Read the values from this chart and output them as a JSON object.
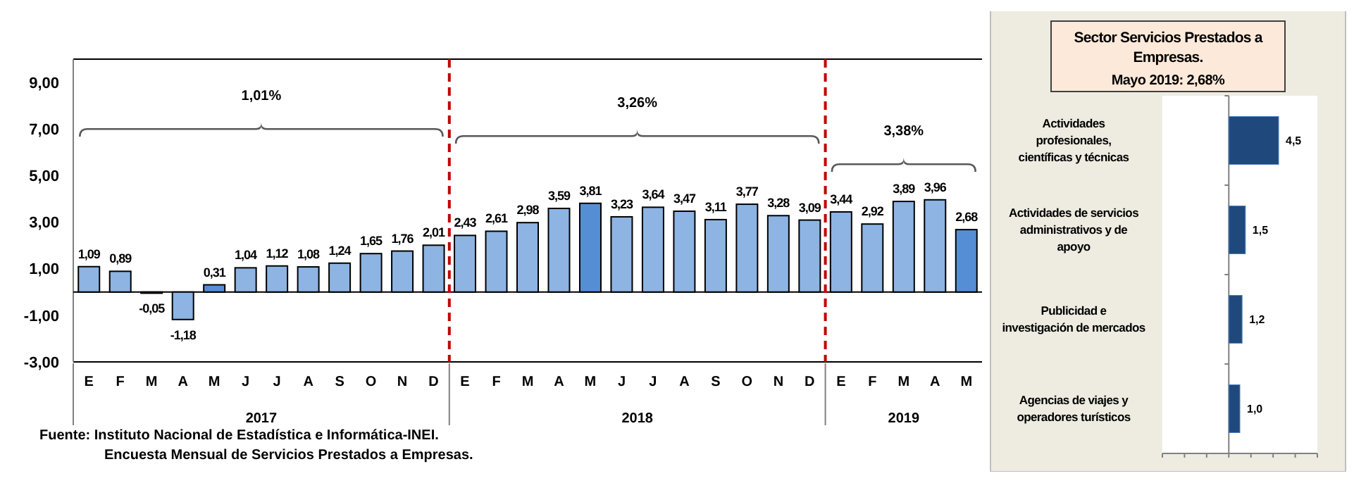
{
  "chart_data": [
    {
      "type": "bar",
      "categories": [
        "E",
        "F",
        "M",
        "A",
        "M",
        "J",
        "J",
        "A",
        "S",
        "O",
        "N",
        "D",
        "E",
        "F",
        "M",
        "A",
        "M",
        "J",
        "J",
        "A",
        "S",
        "O",
        "N",
        "D",
        "E",
        "F",
        "M",
        "A",
        "M"
      ],
      "values": [
        1.09,
        0.89,
        -0.05,
        -1.18,
        0.31,
        1.04,
        1.12,
        1.08,
        1.24,
        1.65,
        1.76,
        2.01,
        2.43,
        2.61,
        2.98,
        3.59,
        3.81,
        3.23,
        3.64,
        3.47,
        3.11,
        3.77,
        3.28,
        3.09,
        3.44,
        2.92,
        3.89,
        3.96,
        2.68
      ],
      "value_labels": [
        "1,09",
        "0,89",
        "-0,05",
        "-1,18",
        "0,31",
        "1,04",
        "1,12",
        "1,08",
        "1,24",
        "1,65",
        "1,76",
        "2,01",
        "2,43",
        "2,61",
        "2,98",
        "3,59",
        "3,81",
        "3,23",
        "3,64",
        "3,47",
        "3,11",
        "3,77",
        "3,28",
        "3,09",
        "3,44",
        "2,92",
        "3,89",
        "3,96",
        "2,68"
      ],
      "colors": [
        "#8db4e2",
        "#8db4e2",
        "#8db4e2",
        "#8db4e2",
        "#558ed5",
        "#8db4e2",
        "#8db4e2",
        "#8db4e2",
        "#8db4e2",
        "#8db4e2",
        "#8db4e2",
        "#8db4e2",
        "#8db4e2",
        "#8db4e2",
        "#8db4e2",
        "#8db4e2",
        "#558ed5",
        "#8db4e2",
        "#8db4e2",
        "#8db4e2",
        "#8db4e2",
        "#8db4e2",
        "#8db4e2",
        "#8db4e2",
        "#8db4e2",
        "#8db4e2",
        "#8db4e2",
        "#8db4e2",
        "#558ed5"
      ],
      "ylim": [
        -3,
        10
      ],
      "yticks": [
        {
          "value": -3,
          "label": "-3,00"
        },
        {
          "value": -1,
          "label": "-1,00"
        },
        {
          "value": 1,
          "label": "1,00"
        },
        {
          "value": 3,
          "label": "3,00"
        },
        {
          "value": 5,
          "label": "5,00"
        },
        {
          "value": 7,
          "label": "7,00"
        },
        {
          "value": 9,
          "label": "9,00"
        }
      ],
      "annotations": [
        "1,01%",
        "3,26%",
        "3,38%",
        "2017",
        "2018",
        "2019",
        "Fuente:  Instituto Nacional de Estadística e Informática-INEI.",
        "Encuesta Mensual de Servicios Prestados a Empresas."
      ]
    },
    {
      "type": "bar",
      "orientation": "horizontal",
      "title": "Sector Servicios Prestados a Empresas.",
      "subtitle": "Mayo 2019: 2,68%",
      "categories": [
        "Actividades profesionales, científicas y técnicas",
        "Actividades de servicios administrativos y de apoyo",
        "Publicidad e investigación de mercados",
        "Agencias de viajes y operadores turísticos"
      ],
      "values": [
        4.5,
        1.5,
        1.2,
        1.0
      ],
      "value_labels": [
        "4,5",
        "1,5",
        "1,2",
        "1,0"
      ],
      "color": "#1f497d",
      "xlim": [
        -6,
        8
      ],
      "xticks": [
        {
          "value": -6,
          "label": null
        },
        {
          "value": -4,
          "label": null
        },
        {
          "value": -2,
          "label": null
        },
        {
          "value": 0,
          "label": null
        },
        {
          "value": 2,
          "label": null
        },
        {
          "value": 4,
          "label": null
        },
        {
          "value": 6,
          "label": null
        },
        {
          "value": 8,
          "label": null
        }
      ],
      "tick_labels": "y"
    }
  ]
}
